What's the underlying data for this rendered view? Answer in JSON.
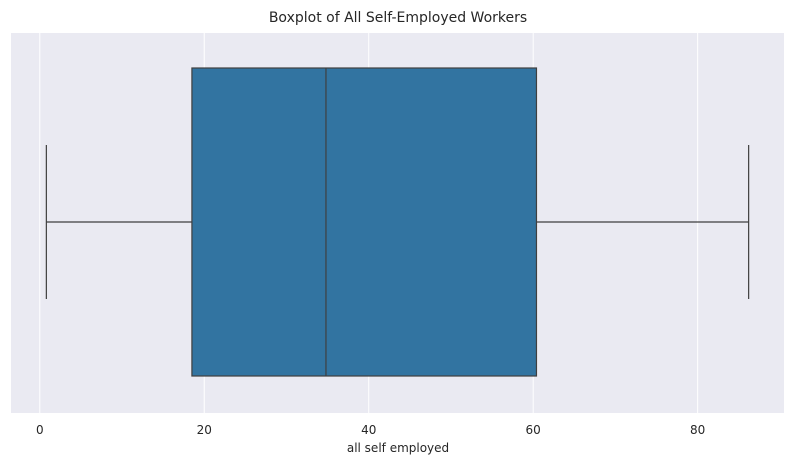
{
  "chart_data": {
    "type": "boxplot",
    "orientation": "horizontal",
    "title": "Boxplot of All Self-Employed Workers",
    "xlabel": "all self employed",
    "ylabel": "",
    "xlim": [
      -3.5,
      90.5
    ],
    "xticks": [
      0,
      20,
      40,
      60,
      80
    ],
    "grid": true,
    "box": {
      "whisker_low": 0.8,
      "q1": 18.5,
      "median": 34.8,
      "q3": 60.4,
      "whisker_high": 86.2
    },
    "colors": {
      "box_fill": "#3274a1",
      "line": "#3f3f3f",
      "background": "#eaeaf2",
      "grid": "#ffffff"
    }
  }
}
